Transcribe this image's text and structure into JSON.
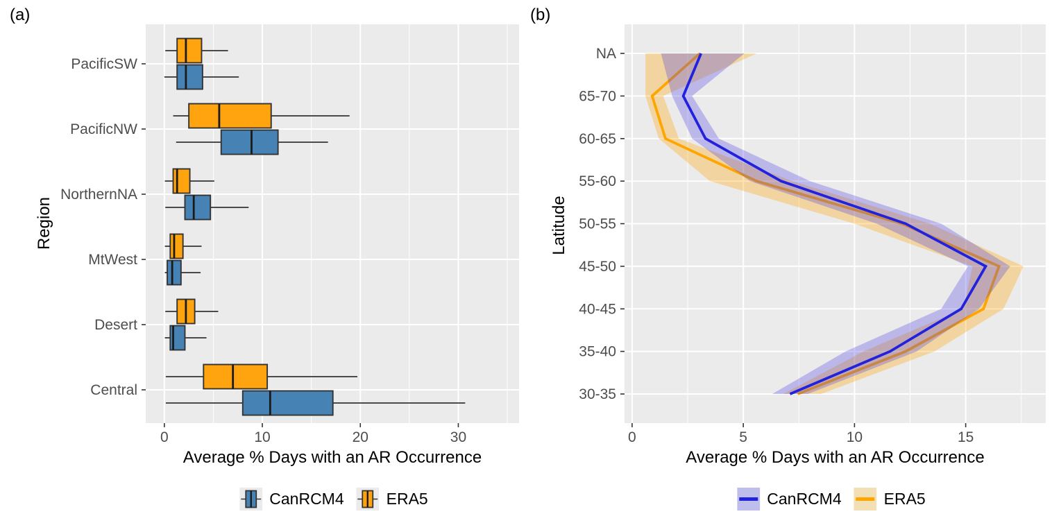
{
  "figure": {
    "panel_a_letter": "(a)",
    "panel_b_letter": "(b)"
  },
  "colors": {
    "panel_bg": "#EBEBEB",
    "grid": "#FFFFFF",
    "box_stroke": "#333333",
    "median": "#1A1A1A",
    "whisker": "#333333",
    "tick": "#333333",
    "tick_label": "#4D4D4D",
    "axis_title": "#000000",
    "canrcm4_box": "#4682B4",
    "era5_box": "#FFA40E",
    "canrcm4_line": "#2222DD",
    "era5_line": "#FFA500",
    "canrcm4_ribbon": "rgba(75,65,228,0.30)",
    "era5_ribbon": "rgba(255,165,0,0.32)",
    "legend_a_key_bg": "#EBEBEB",
    "canrcm4_legend_key_bg": "#BEBEEC",
    "era5_legend_key_bg": "#F2E0B4"
  },
  "chart_data": [
    {
      "type": "boxplot",
      "panel_label": "(a)",
      "orientation": "horizontal",
      "xlabel": "Average % Days with an AR Occurrence",
      "ylabel": "Region",
      "categories": [
        "PacificSW",
        "PacificNW",
        "NorthernNA",
        "MtWest",
        "Desert",
        "Central"
      ],
      "xlim": [
        -1.9,
        36.2
      ],
      "xticks": [
        0,
        10,
        20,
        30
      ],
      "xminor": [
        5,
        15,
        25,
        35
      ],
      "grid": true,
      "legend_position": "bottom",
      "series": [
        {
          "name": "CanRCM4",
          "color": "#4682B4",
          "boxes": [
            {
              "low": 0.0,
              "q1": 1.3,
              "med": 2.2,
              "q3": 3.9,
              "high": 7.6
            },
            {
              "low": 1.2,
              "q1": 5.8,
              "med": 8.9,
              "q3": 11.6,
              "high": 16.7
            },
            {
              "low": 0.1,
              "q1": 2.1,
              "med": 3.0,
              "q3": 4.7,
              "high": 8.6
            },
            {
              "low": 0.05,
              "q1": 0.3,
              "med": 0.8,
              "q3": 1.7,
              "high": 3.7
            },
            {
              "low": 0.05,
              "q1": 0.6,
              "med": 0.9,
              "q3": 2.1,
              "high": 4.3
            },
            {
              "low": 0.15,
              "q1": 8.0,
              "med": 10.8,
              "q3": 17.2,
              "high": 30.7
            }
          ]
        },
        {
          "name": "ERA5",
          "color": "#FFA40E",
          "boxes": [
            {
              "low": 0.1,
              "q1": 1.3,
              "med": 2.2,
              "q3": 3.8,
              "high": 6.5
            },
            {
              "low": 0.9,
              "q1": 2.5,
              "med": 5.6,
              "q3": 10.9,
              "high": 18.9
            },
            {
              "low": 0.05,
              "q1": 0.9,
              "med": 1.3,
              "q3": 2.6,
              "high": 5.1
            },
            {
              "low": 0.05,
              "q1": 0.6,
              "med": 1.0,
              "q3": 1.9,
              "high": 3.8
            },
            {
              "low": 0.1,
              "q1": 1.3,
              "med": 2.2,
              "q3": 3.1,
              "high": 5.5
            },
            {
              "low": 0.15,
              "q1": 4.0,
              "med": 7.0,
              "q3": 10.5,
              "high": 19.7
            }
          ]
        }
      ]
    },
    {
      "type": "line",
      "panel_label": "(b)",
      "orientation": "horizontal",
      "xlabel": "Average % Days with an AR Occurrence",
      "ylabel": "Latitude",
      "categories": [
        "NA",
        "65-70",
        "60-65",
        "55-60",
        "50-55",
        "45-50",
        "40-45",
        "35-40",
        "30-35"
      ],
      "xlim": [
        -0.34,
        18.6
      ],
      "xticks": [
        0,
        5,
        10,
        15
      ],
      "xminor": [
        2.5,
        7.5,
        12.5,
        17.5
      ],
      "grid": true,
      "legend_position": "bottom",
      "series": [
        {
          "name": "CanRCM4",
          "color": "#2222DD",
          "ribbon_color": "rgba(75,65,228,0.30)",
          "values": [
            3.1,
            2.3,
            3.3,
            6.7,
            12.3,
            15.9,
            14.8,
            11.6,
            7.1
          ],
          "ribbon_low": [
            1.3,
            1.8,
            2.7,
            5.3,
            11.0,
            15.1,
            13.9,
            9.6,
            6.3
          ],
          "ribbon_high": [
            5.05,
            2.7,
            3.9,
            8.0,
            13.9,
            17.0,
            15.6,
            12.8,
            7.9
          ]
        },
        {
          "name": "ERA5",
          "color": "#FFA500",
          "ribbon_color": "rgba(255,165,0,0.32)",
          "values": [
            3.05,
            0.9,
            1.5,
            5.6,
            12.15,
            16.5,
            15.8,
            12.3,
            7.45
          ],
          "ribbon_low": [
            0.6,
            0.6,
            1.2,
            3.5,
            10.0,
            15.3,
            14.9,
            10.4,
            6.8
          ],
          "ribbon_high": [
            5.6,
            1.4,
            2.1,
            7.2,
            13.4,
            17.6,
            16.7,
            13.6,
            8.5
          ]
        }
      ]
    }
  ]
}
